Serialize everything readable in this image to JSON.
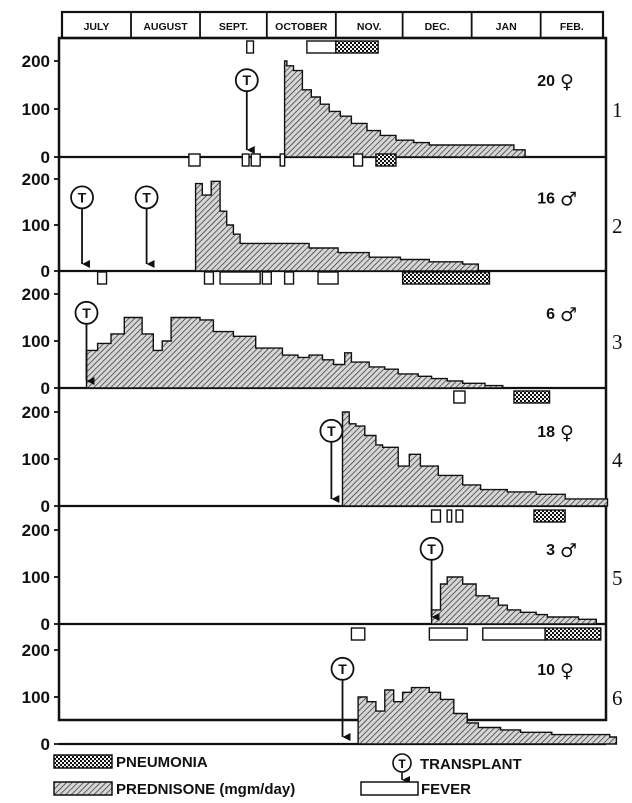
{
  "chart_data": {
    "type": "area",
    "months": [
      "JULY",
      "AUGUST",
      "SEPT.",
      "OCTOBER",
      "NOV.",
      "DEC.",
      "JAN",
      "FEB."
    ],
    "x_unit": "days from July 1",
    "y_ticks": [
      "0",
      "100",
      "200"
    ],
    "ylim": [
      0,
      240
    ],
    "panels": [
      {
        "number": "1",
        "age": "20",
        "sex_symbol": "♀",
        "transplants": [
          83
        ],
        "fever": [
          [
            83,
            86
          ],
          [
            110,
            123
          ]
        ],
        "pneumonia": [
          [
            123,
            142
          ]
        ],
        "prednisone": [
          [
            100,
            200
          ],
          [
            101,
            200
          ],
          [
            101,
            190
          ],
          [
            104,
            180
          ],
          [
            108,
            140
          ],
          [
            112,
            125
          ],
          [
            116,
            110
          ],
          [
            120,
            95
          ],
          [
            125,
            85
          ],
          [
            130,
            70
          ],
          [
            137,
            55
          ],
          [
            143,
            45
          ],
          [
            150,
            35
          ],
          [
            158,
            30
          ],
          [
            165,
            25
          ],
          [
            181,
            25
          ],
          [
            195,
            25
          ],
          [
            203,
            15
          ],
          [
            208,
            15
          ]
        ]
      },
      {
        "number": "2",
        "age": "16",
        "sex_symbol": "♂",
        "transplants": [
          9,
          38
        ],
        "fever": [
          [
            57,
            62
          ],
          [
            81,
            84
          ],
          [
            85,
            89
          ],
          [
            98,
            100
          ],
          [
            131,
            135
          ]
        ],
        "pneumonia": [
          [
            141,
            150
          ]
        ],
        "prednisone": [
          [
            60,
            190
          ],
          [
            63,
            190
          ],
          [
            63,
            165
          ],
          [
            67,
            195
          ],
          [
            71,
            195
          ],
          [
            71,
            130
          ],
          [
            74,
            100
          ],
          [
            77,
            80
          ],
          [
            80,
            60
          ],
          [
            97,
            60
          ],
          [
            111,
            50
          ],
          [
            124,
            40
          ],
          [
            138,
            30
          ],
          [
            152,
            25
          ],
          [
            165,
            20
          ],
          [
            180,
            15
          ],
          [
            187,
            15
          ]
        ]
      },
      {
        "number": "3",
        "age": "6",
        "sex_symbol": "♂",
        "transplants": [
          11
        ],
        "fever": [
          [
            16,
            20
          ],
          [
            64,
            68
          ],
          [
            71,
            89
          ],
          [
            90,
            94
          ],
          [
            100,
            104
          ],
          [
            115,
            124
          ]
        ],
        "pneumonia": [
          [
            153,
            192
          ]
        ],
        "prednisone": [
          [
            11,
            80
          ],
          [
            14,
            80
          ],
          [
            16,
            95
          ],
          [
            22,
            115
          ],
          [
            28,
            150
          ],
          [
            36,
            115
          ],
          [
            41,
            80
          ],
          [
            45,
            100
          ],
          [
            49,
            150
          ],
          [
            62,
            145
          ],
          [
            68,
            120
          ],
          [
            77,
            110
          ],
          [
            87,
            85
          ],
          [
            99,
            70
          ],
          [
            106,
            65
          ],
          [
            111,
            70
          ],
          [
            117,
            60
          ],
          [
            122,
            50
          ],
          [
            127,
            75
          ],
          [
            130,
            55
          ],
          [
            138,
            45
          ],
          [
            145,
            40
          ],
          [
            151,
            30
          ],
          [
            160,
            25
          ],
          [
            166,
            20
          ],
          [
            173,
            15
          ],
          [
            180,
            10
          ],
          [
            190,
            5
          ],
          [
            198,
            0
          ]
        ]
      },
      {
        "number": "4",
        "age": "18",
        "sex_symbol": "♀",
        "transplants": [
          121
        ],
        "fever": [
          [
            176,
            181
          ]
        ],
        "pneumonia": [
          [
            203,
            219
          ]
        ],
        "prednisone": [
          [
            126,
            200
          ],
          [
            129,
            200
          ],
          [
            129,
            175
          ],
          [
            132,
            170
          ],
          [
            136,
            150
          ],
          [
            141,
            130
          ],
          [
            144,
            125
          ],
          [
            151,
            85
          ],
          [
            156,
            110
          ],
          [
            161,
            85
          ],
          [
            169,
            65
          ],
          [
            180,
            45
          ],
          [
            188,
            35
          ],
          [
            200,
            30
          ],
          [
            213,
            25
          ],
          [
            226,
            15
          ],
          [
            245,
            15
          ]
        ]
      },
      {
        "number": "5",
        "age": "3",
        "sex_symbol": "♂",
        "transplants": [
          166
        ],
        "fever": [
          [
            166,
            170
          ],
          [
            173,
            175
          ],
          [
            177,
            180
          ]
        ],
        "pneumonia": [
          [
            212,
            226
          ]
        ],
        "prednisone": [
          [
            166,
            30
          ],
          [
            170,
            85
          ],
          [
            173,
            100
          ],
          [
            180,
            85
          ],
          [
            186,
            60
          ],
          [
            192,
            55
          ],
          [
            196,
            40
          ],
          [
            200,
            30
          ],
          [
            206,
            25
          ],
          [
            213,
            20
          ],
          [
            218,
            15
          ],
          [
            232,
            10
          ],
          [
            240,
            10
          ]
        ]
      },
      {
        "number": "6",
        "age": "10",
        "sex_symbol": "♀",
        "transplants": [
          126
        ],
        "fever": [
          [
            130,
            136
          ],
          [
            165,
            182
          ],
          [
            189,
            217
          ]
        ],
        "pneumonia": [
          [
            217,
            242
          ]
        ],
        "prednisone": [
          [
            133,
            100
          ],
          [
            137,
            90
          ],
          [
            141,
            70
          ],
          [
            145,
            115
          ],
          [
            149,
            90
          ],
          [
            153,
            110
          ],
          [
            157,
            120
          ],
          [
            165,
            110
          ],
          [
            170,
            95
          ],
          [
            176,
            65
          ],
          [
            182,
            45
          ],
          [
            187,
            35
          ],
          [
            197,
            30
          ],
          [
            206,
            25
          ],
          [
            220,
            20
          ],
          [
            232,
            20
          ],
          [
            246,
            15
          ],
          [
            249,
            15
          ]
        ]
      }
    ],
    "legend": {
      "pneumonia": "PNEUMONIA",
      "prednisone": "PREDNISONE (mgm/day)",
      "transplant": "TRANSPLANT",
      "fever": "FEVER",
      "transplant_mark": "T"
    }
  }
}
